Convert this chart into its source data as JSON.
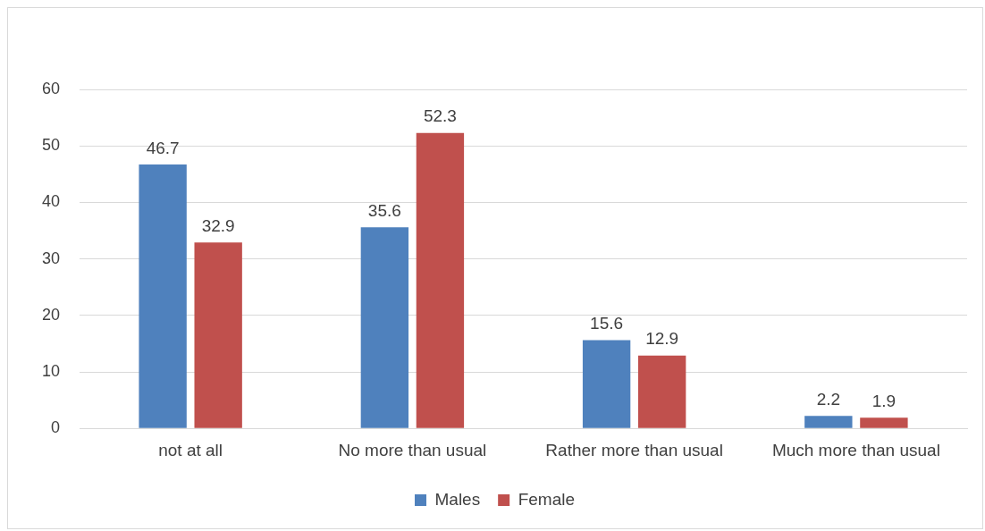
{
  "chart_data": {
    "type": "bar",
    "categories": [
      "not at all",
      "No more than usual",
      "Rather more than usual",
      "Much more than usual"
    ],
    "series": [
      {
        "name": "Males",
        "color": "#4f81bd",
        "values": [
          46.7,
          35.6,
          15.6,
          2.2
        ]
      },
      {
        "name": "Female",
        "color": "#c0504d",
        "values": [
          32.9,
          52.3,
          12.9,
          1.9
        ]
      }
    ],
    "ylim": [
      0,
      60
    ],
    "yticks": [
      0,
      10,
      20,
      30,
      40,
      50,
      60
    ],
    "grid": "y",
    "legend": "bottom",
    "data_labels": true
  }
}
